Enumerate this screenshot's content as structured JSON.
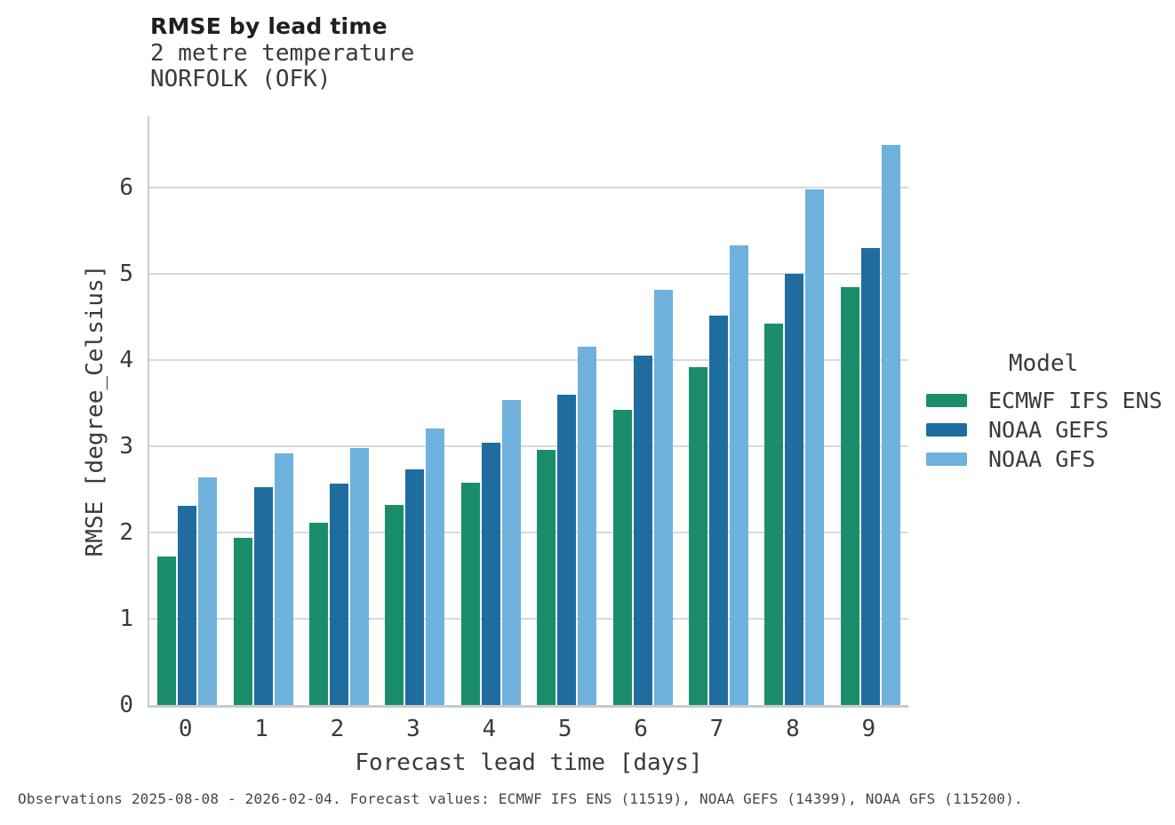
{
  "chart_data": {
    "type": "bar",
    "title": "RMSE by lead time",
    "subtitle": [
      "2 metre temperature",
      "NORFOLK (OFK)"
    ],
    "xlabel": "Forecast lead time [days]",
    "ylabel": "RMSE [degree_Celsius]",
    "categories": [
      "0",
      "1",
      "2",
      "3",
      "4",
      "5",
      "6",
      "7",
      "8",
      "9"
    ],
    "yticks": [
      0,
      1,
      2,
      3,
      4,
      5,
      6
    ],
    "ylim": [
      0,
      6.83
    ],
    "grid": "horizontal",
    "legend_title": "Model",
    "legend_position": "right",
    "series": [
      {
        "name": "ECMWF IFS ENS",
        "color": "#1a8e6b",
        "values": [
          1.72,
          1.94,
          2.12,
          2.32,
          2.58,
          2.96,
          3.43,
          3.92,
          4.43,
          4.85
        ]
      },
      {
        "name": "NOAA GEFS",
        "color": "#1f6d9e",
        "values": [
          2.31,
          2.53,
          2.57,
          2.73,
          3.04,
          3.6,
          4.05,
          4.52,
          5.0,
          5.3
        ]
      },
      {
        "name": "NOAA GFS",
        "color": "#6eb1dc",
        "values": [
          2.64,
          2.92,
          2.98,
          3.21,
          3.54,
          4.16,
          4.82,
          5.33,
          5.98,
          6.5
        ]
      }
    ]
  },
  "footer": {
    "text": "Observations 2025-08-08 - 2026-02-04. Forecast values: ECMWF IFS ENS (11519), NOAA GEFS (14399), NOAA GFS (115200)."
  },
  "colors": {
    "grid": "#d9d9d9",
    "spine": "#cacaca",
    "text": "#3a3a3a",
    "title_text": "#1f1f1f"
  }
}
